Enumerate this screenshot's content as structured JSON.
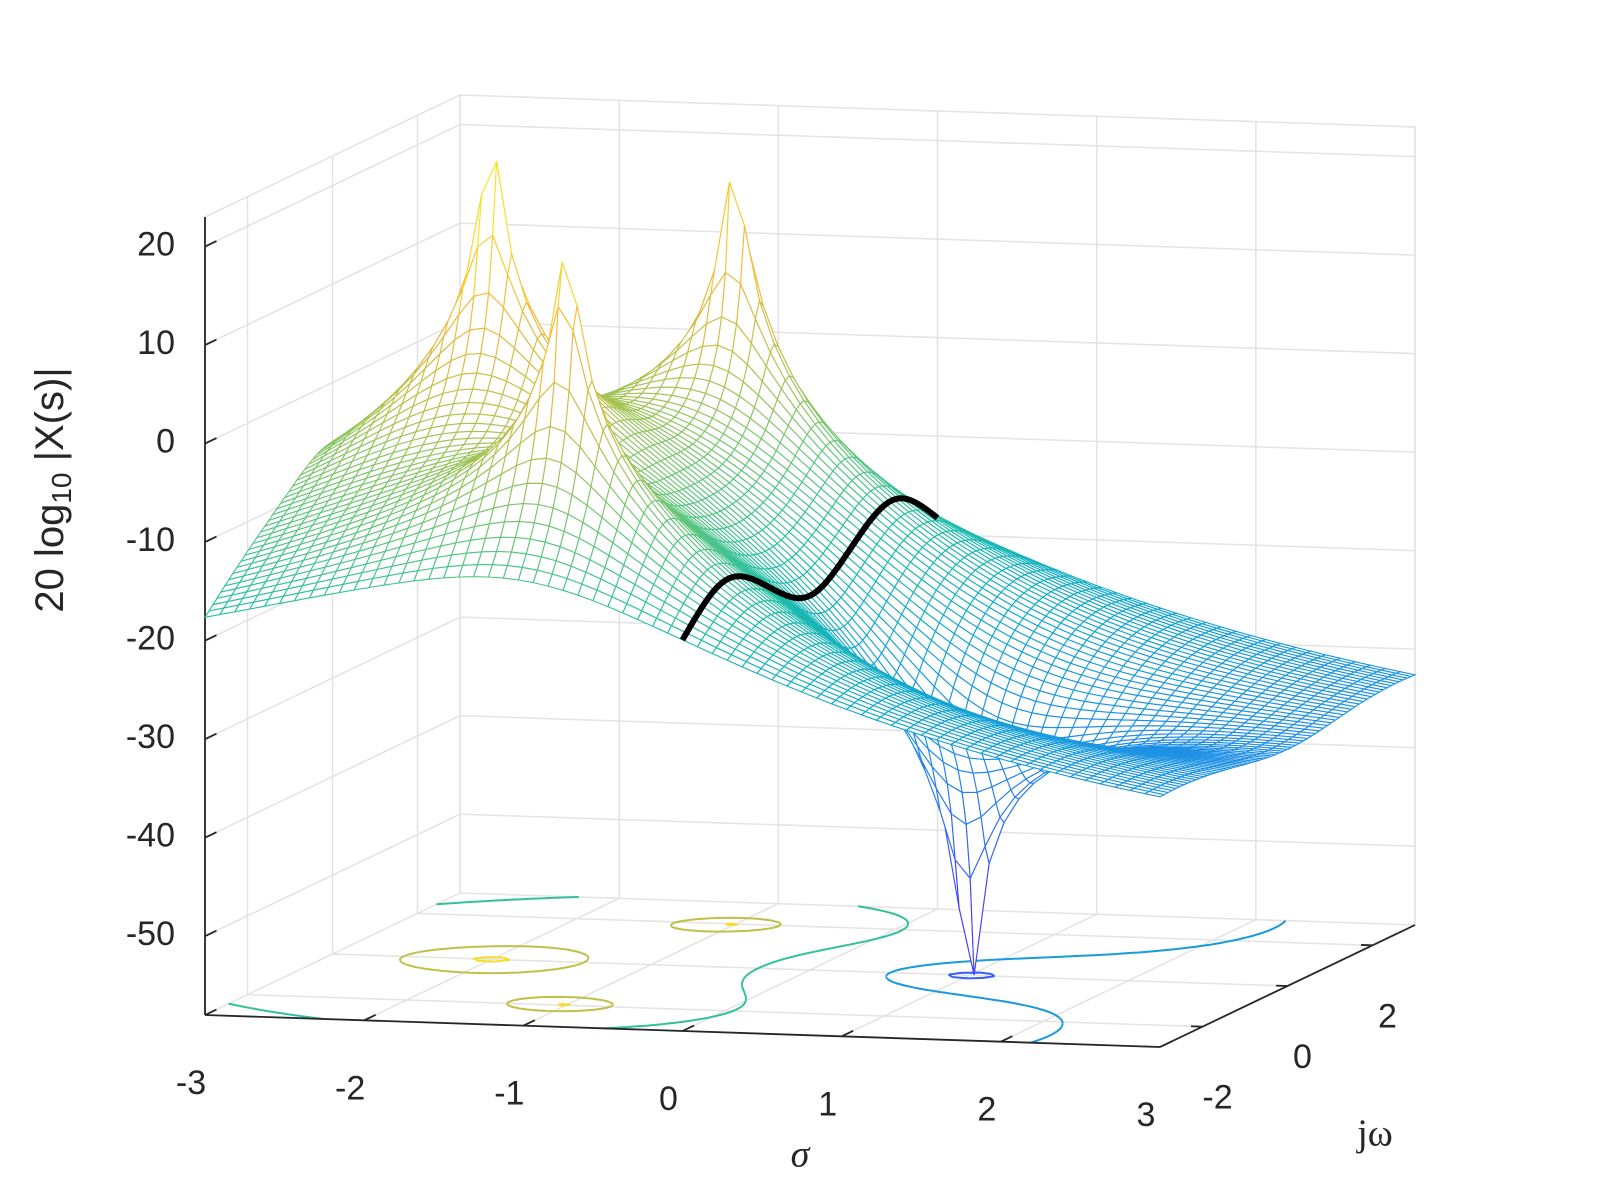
{
  "chart_data": {
    "type": "surface",
    "xlabel": "σ",
    "ylabel": "jω",
    "zlabel": [
      "20 log",
      "10",
      " |X(s)|"
    ],
    "poles": [
      {
        "sigma": -2,
        "omega": 0
      },
      {
        "sigma": -1,
        "omega": 2
      },
      {
        "sigma": -1,
        "omega": -2
      }
    ],
    "zeros": [
      {
        "sigma": 1,
        "omega": 0
      }
    ],
    "xlim": [
      -3,
      3
    ],
    "xticks": [
      -3,
      -2,
      -1,
      0,
      1,
      2,
      3
    ],
    "ylim": [
      -3,
      3
    ],
    "yticks": [
      -2,
      0,
      2
    ],
    "zlim": [
      -58,
      23
    ],
    "zticks": [
      -50,
      -40,
      -30,
      -20,
      -10,
      0,
      10,
      20
    ],
    "contour_levels": [
      -45,
      -30,
      -15,
      0,
      15
    ],
    "trace": {
      "sigma": 0,
      "color": "#000000"
    },
    "colormap": [
      "#3e26a8",
      "#4743f8",
      "#2d6ffc",
      "#1f8fe6",
      "#11a8d0",
      "#1ebea8",
      "#64c77a",
      "#b4c24b",
      "#f0b93b",
      "#fadb2a",
      "#f9fb15"
    ],
    "grid": true
  }
}
